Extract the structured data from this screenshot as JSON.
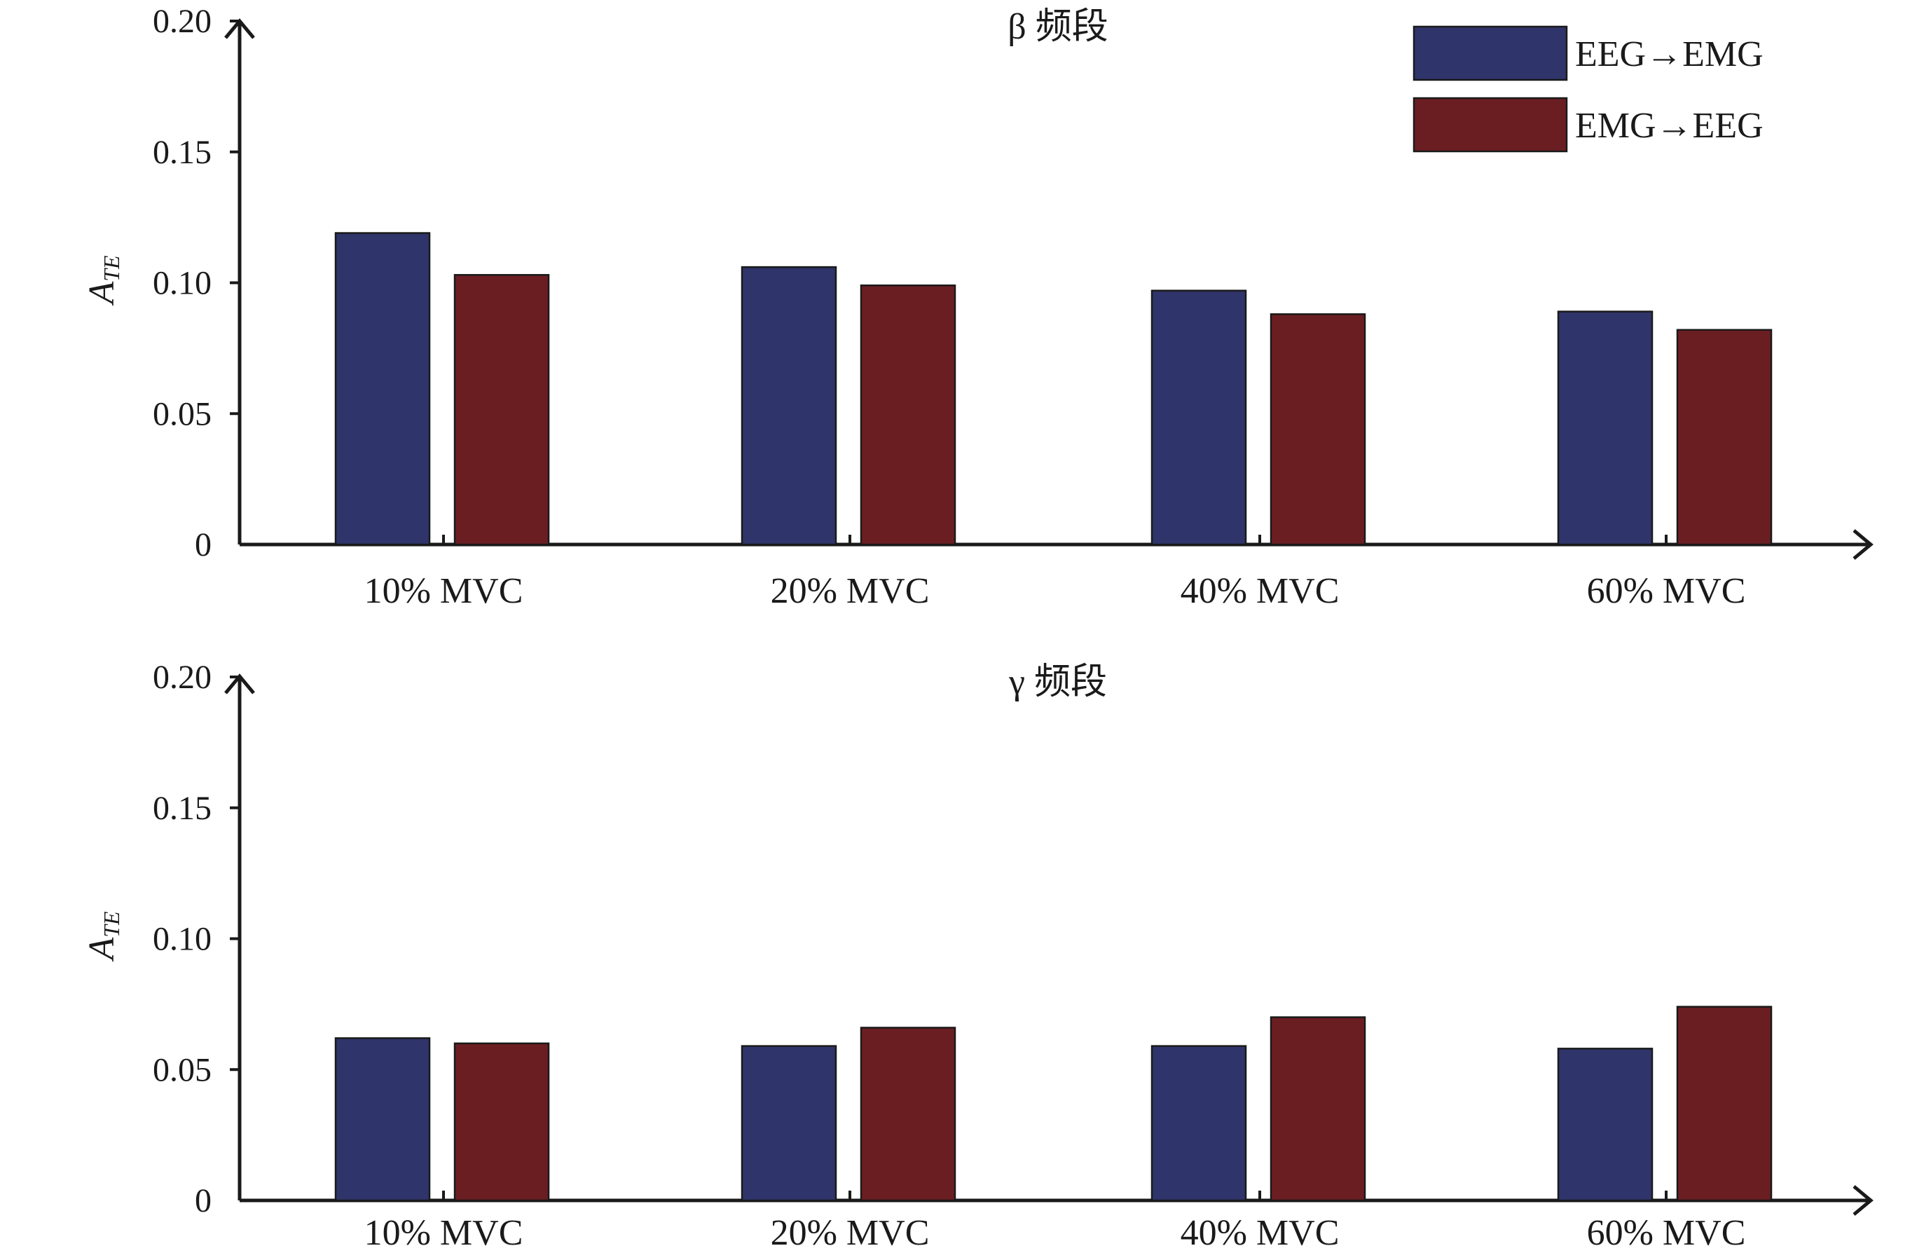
{
  "chart_data": [
    {
      "type": "bar",
      "title": "β 频段",
      "ylabel": "A",
      "ylabel_sub": "TE",
      "ylim": [
        0,
        0.2
      ],
      "yticks": [
        "0",
        "0.05",
        "0.10",
        "0.15",
        "0.20"
      ],
      "ytick_values": [
        0,
        0.05,
        0.1,
        0.15,
        0.2
      ],
      "categories": [
        "10% MVC",
        "20% MVC",
        "40% MVC",
        "60% MVC"
      ],
      "series": [
        {
          "name": "EEG→EMG",
          "color": "#2f346a",
          "values": [
            0.119,
            0.106,
            0.097,
            0.089
          ]
        },
        {
          "name": "EMG→EEG",
          "color": "#6b1e22",
          "values": [
            0.103,
            0.099,
            0.088,
            0.082
          ]
        }
      ],
      "legend": "top-right",
      "grid": false
    },
    {
      "type": "bar",
      "title": "γ 频段",
      "ylabel": "A",
      "ylabel_sub": "TE",
      "ylim": [
        0,
        0.2
      ],
      "yticks": [
        "0",
        "0.05",
        "0.10",
        "0.15",
        "0.20"
      ],
      "ytick_values": [
        0,
        0.05,
        0.1,
        0.15,
        0.2
      ],
      "categories": [
        "10% MVC",
        "20% MVC",
        "40% MVC",
        "60% MVC"
      ],
      "series": [
        {
          "name": "EEG→EMG",
          "color": "#2f346a",
          "values": [
            0.062,
            0.059,
            0.059,
            0.058
          ]
        },
        {
          "name": "EMG→EEG",
          "color": "#6b1e22",
          "values": [
            0.06,
            0.066,
            0.07,
            0.074
          ]
        }
      ],
      "legend": "none",
      "grid": false
    }
  ]
}
